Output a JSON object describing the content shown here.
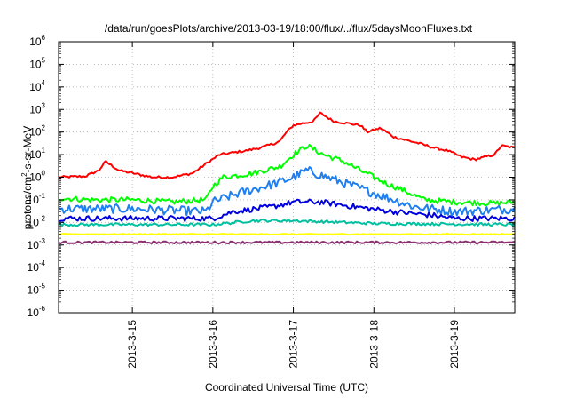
{
  "chart_data": {
    "type": "line",
    "title": "/data/run/goesPlots/archive/2013-03-19/18:00/flux/../flux/5daysMoonFluxes.txt",
    "xlabel": "Coordinated Universal Time (UTC)",
    "ylabel": "protons/cm2-s-sr-MeV",
    "y_scale": "log",
    "ylim": [
      1e-06,
      1000000.0
    ],
    "y_ticks": [
      {
        "base": "10",
        "exp": "-6",
        "value": 1e-06
      },
      {
        "base": "10",
        "exp": "-5",
        "value": 1e-05
      },
      {
        "base": "10",
        "exp": "-4",
        "value": 0.0001
      },
      {
        "base": "10",
        "exp": "-3",
        "value": 0.001
      },
      {
        "base": "10",
        "exp": "-2",
        "value": 0.01
      },
      {
        "base": "10",
        "exp": "-1",
        "value": 0.1
      },
      {
        "base": "10",
        "exp": "0",
        "value": 1
      },
      {
        "base": "10",
        "exp": "1",
        "value": 10
      },
      {
        "base": "10",
        "exp": "2",
        "value": 100
      },
      {
        "base": "10",
        "exp": "3",
        "value": 1000
      },
      {
        "base": "10",
        "exp": "4",
        "value": 10000
      },
      {
        "base": "10",
        "exp": "5",
        "value": 100000
      },
      {
        "base": "10",
        "exp": "6",
        "value": 1000000
      }
    ],
    "xlim": [
      "2013-03-14T02:00",
      "2013-03-19T18:00"
    ],
    "x_ticks": [
      {
        "label": "2013-3-15",
        "value": "2013-03-15T00:00"
      },
      {
        "label": "2013-3-16",
        "value": "2013-03-16T00:00"
      },
      {
        "label": "2013-3-17",
        "value": "2013-03-17T00:00"
      },
      {
        "label": "2013-3-18",
        "value": "2013-03-18T00:00"
      },
      {
        "label": "2013-3-19",
        "value": "2013-03-19T00:00"
      }
    ],
    "grid": true,
    "legend": "none",
    "series": [
      {
        "color": "#ff0000",
        "noise": 0.05,
        "points": [
          [
            "2013-03-14T02:00",
            1.0
          ],
          [
            "2013-03-14T10:00",
            1.1
          ],
          [
            "2013-03-14T14:00",
            2.0
          ],
          [
            "2013-03-14T16:00",
            5.0
          ],
          [
            "2013-03-14T20:00",
            2.0
          ],
          [
            "2013-03-15T06:00",
            1.0
          ],
          [
            "2013-03-15T12:00",
            1.0
          ],
          [
            "2013-03-15T18:00",
            1.5
          ],
          [
            "2013-03-15T22:00",
            4.0
          ],
          [
            "2013-03-16T02:00",
            10.0
          ],
          [
            "2013-03-16T10:00",
            15.0
          ],
          [
            "2013-03-16T14:00",
            20.0
          ],
          [
            "2013-03-16T18:00",
            30.0
          ],
          [
            "2013-03-16T20:00",
            40.0
          ],
          [
            "2013-03-16T22:00",
            100.0
          ],
          [
            "2013-03-17T00:00",
            200.0
          ],
          [
            "2013-03-17T06:00",
            300.0
          ],
          [
            "2013-03-17T08:00",
            700.0
          ],
          [
            "2013-03-17T12:00",
            300.0
          ],
          [
            "2013-03-17T20:00",
            200.0
          ],
          [
            "2013-03-17T22:00",
            100.0
          ],
          [
            "2013-03-18T02:00",
            150.0
          ],
          [
            "2013-03-18T06:00",
            60.0
          ],
          [
            "2013-03-18T14:00",
            30.0
          ],
          [
            "2013-03-18T18:00",
            20.0
          ],
          [
            "2013-03-18T22:00",
            15.0
          ],
          [
            "2013-03-19T02:00",
            8.0
          ],
          [
            "2013-03-19T06:00",
            6.0
          ],
          [
            "2013-03-19T12:00",
            10.0
          ],
          [
            "2013-03-19T14:00",
            25.0
          ],
          [
            "2013-03-19T18:00",
            20.0
          ]
        ]
      },
      {
        "color": "#00ff00",
        "noise": 0.12,
        "points": [
          [
            "2013-03-14T02:00",
            0.12
          ],
          [
            "2013-03-14T12:00",
            0.1
          ],
          [
            "2013-03-15T00:00",
            0.1
          ],
          [
            "2013-03-15T12:00",
            0.08
          ],
          [
            "2013-03-15T22:00",
            0.1
          ],
          [
            "2013-03-16T00:00",
            0.4
          ],
          [
            "2013-03-16T03:00",
            1.0
          ],
          [
            "2013-03-16T12:00",
            1.5
          ],
          [
            "2013-03-16T20:00",
            3.0
          ],
          [
            "2013-03-17T00:00",
            10.0
          ],
          [
            "2013-03-17T04:00",
            25.0
          ],
          [
            "2013-03-17T09:00",
            10.0
          ],
          [
            "2013-03-17T15:00",
            5.0
          ],
          [
            "2013-03-17T20:00",
            2.0
          ],
          [
            "2013-03-18T00:00",
            1.0
          ],
          [
            "2013-03-18T04:00",
            0.5
          ],
          [
            "2013-03-18T08:00",
            0.3
          ],
          [
            "2013-03-18T15:00",
            0.1
          ],
          [
            "2013-03-19T00:00",
            0.08
          ],
          [
            "2013-03-19T12:00",
            0.07
          ],
          [
            "2013-03-19T18:00",
            0.08
          ]
        ]
      },
      {
        "color": "#1e7ff0",
        "noise": 0.2,
        "points": [
          [
            "2013-03-14T02:00",
            0.04
          ],
          [
            "2013-03-15T00:00",
            0.04
          ],
          [
            "2013-03-15T22:00",
            0.03
          ],
          [
            "2013-03-16T00:00",
            0.08
          ],
          [
            "2013-03-16T08:00",
            0.2
          ],
          [
            "2013-03-16T20:00",
            0.6
          ],
          [
            "2013-03-17T00:00",
            1.0
          ],
          [
            "2013-03-17T04:00",
            2.0
          ],
          [
            "2013-03-17T10:00",
            1.0
          ],
          [
            "2013-03-17T18:00",
            0.4
          ],
          [
            "2013-03-18T00:00",
            0.2
          ],
          [
            "2013-03-18T06:00",
            0.1
          ],
          [
            "2013-03-18T12:00",
            0.05
          ],
          [
            "2013-03-19T00:00",
            0.03
          ],
          [
            "2013-03-19T18:00",
            0.04
          ]
        ]
      },
      {
        "color": "#0000dd",
        "noise": 0.12,
        "points": [
          [
            "2013-03-14T02:00",
            0.015
          ],
          [
            "2013-03-15T00:00",
            0.015
          ],
          [
            "2013-03-16T00:00",
            0.015
          ],
          [
            "2013-03-16T06:00",
            0.03
          ],
          [
            "2013-03-16T18:00",
            0.05
          ],
          [
            "2013-03-17T00:00",
            0.08
          ],
          [
            "2013-03-17T08:00",
            0.08
          ],
          [
            "2013-03-17T18:00",
            0.05
          ],
          [
            "2013-03-18T06:00",
            0.03
          ],
          [
            "2013-03-18T18:00",
            0.02
          ],
          [
            "2013-03-19T00:00",
            0.015
          ],
          [
            "2013-03-19T18:00",
            0.015
          ]
        ]
      },
      {
        "color": "#00c0a0",
        "noise": 0.06,
        "points": [
          [
            "2013-03-14T02:00",
            0.008
          ],
          [
            "2013-03-16T00:00",
            0.008
          ],
          [
            "2013-03-16T12:00",
            0.012
          ],
          [
            "2013-03-17T00:00",
            0.012
          ],
          [
            "2013-03-18T00:00",
            0.009
          ],
          [
            "2013-03-19T18:00",
            0.008
          ]
        ]
      },
      {
        "color": "#ffff00",
        "noise": 0.02,
        "points": [
          [
            "2013-03-14T02:00",
            0.003
          ],
          [
            "2013-03-19T18:00",
            0.003
          ]
        ]
      },
      {
        "color": "#8b2f6e",
        "noise": 0.05,
        "points": [
          [
            "2013-03-14T02:00",
            0.0013
          ],
          [
            "2013-03-19T18:00",
            0.0013
          ]
        ]
      }
    ]
  }
}
